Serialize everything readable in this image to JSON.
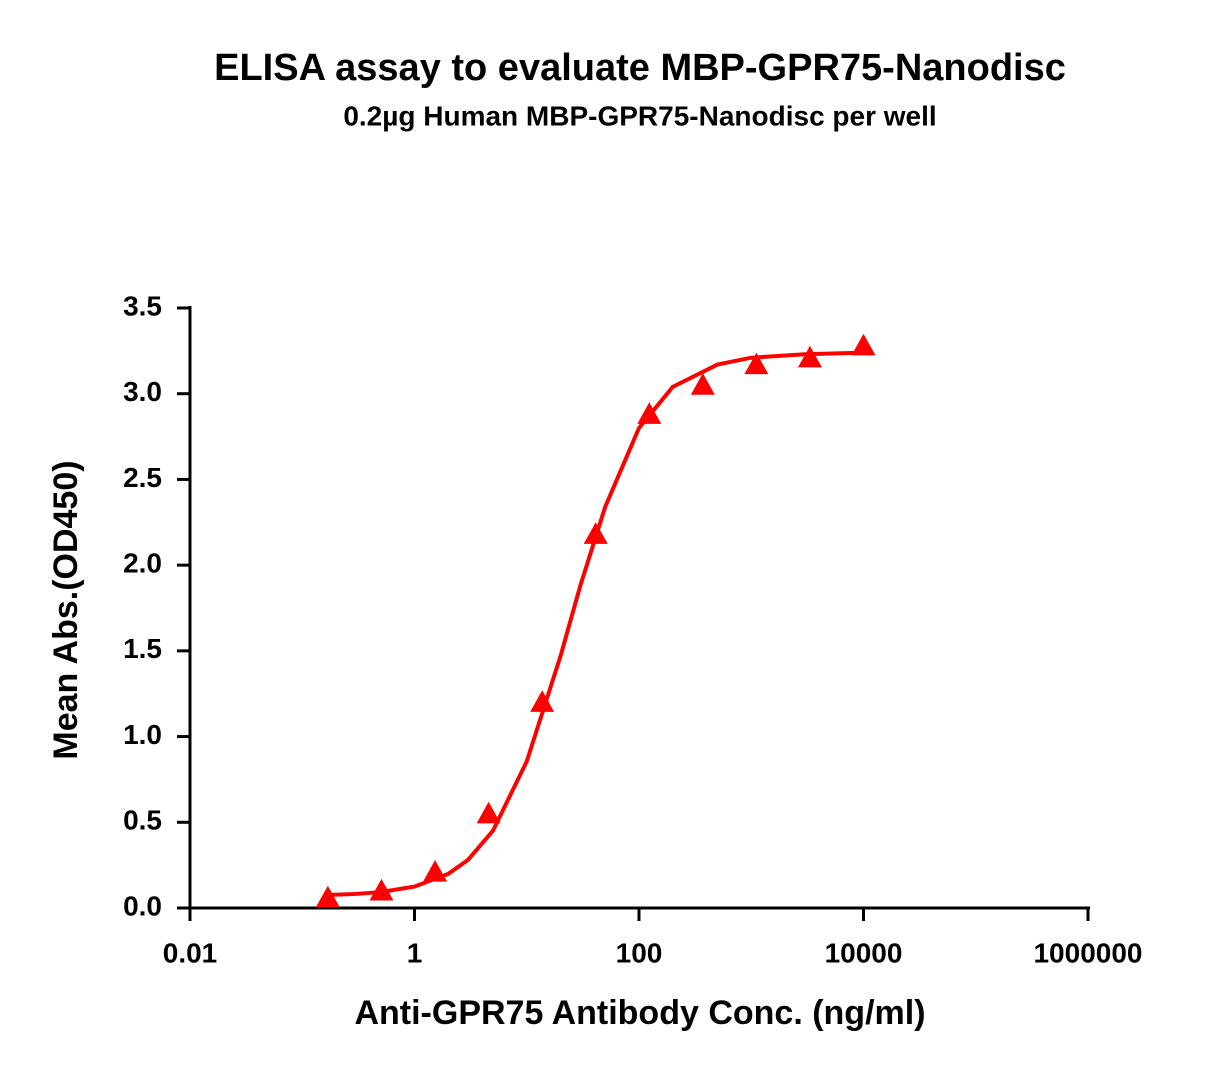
{
  "chart_data": {
    "type": "scatter",
    "title": "ELISA assay to evaluate MBP-GPR75-Nanodisc",
    "subtitle": "0.2µg Human MBP-GPR75-Nanodisc per well",
    "x_label": "Anti-GPR75 Antibody Conc. (ng/ml)",
    "y_label": "Mean Abs.(OD450)",
    "x_log": true,
    "xlim": [
      0.01,
      1000000
    ],
    "xticks": [
      0.01,
      1,
      100,
      10000,
      1000000
    ],
    "ylim": [
      0,
      3.5
    ],
    "yticks": [
      {
        "value": 0,
        "label": "0.0"
      },
      0.5,
      {
        "value": 1,
        "label": "1.0"
      },
      1.5,
      {
        "value": 2,
        "label": "2.0"
      },
      2.5,
      {
        "value": 3,
        "label": "3.0"
      },
      3.5
    ],
    "series": [
      {
        "type": "scatter",
        "marker": "triangle",
        "color": "#ff0000",
        "x": [
          0.169,
          0.508,
          1.524,
          4.572,
          13.72,
          41.15,
          123.5,
          370.4,
          1111,
          3333,
          10000
        ],
        "values": [
          0.06,
          0.1,
          0.21,
          0.55,
          1.2,
          2.18,
          2.88,
          3.05,
          3.17,
          3.21,
          3.28
        ]
      },
      {
        "type": "line",
        "color": "#ff0000",
        "x": [
          0.169,
          0.3,
          0.5,
          1,
          2,
          3,
          5,
          10,
          20,
          30,
          50,
          100,
          200,
          500,
          1000,
          3000,
          10000
        ],
        "values": [
          0.076,
          0.082,
          0.093,
          0.125,
          0.199,
          0.281,
          0.451,
          0.855,
          1.47,
          1.88,
          2.34,
          2.8,
          3.04,
          3.17,
          3.21,
          3.23,
          3.24
        ]
      }
    ]
  }
}
